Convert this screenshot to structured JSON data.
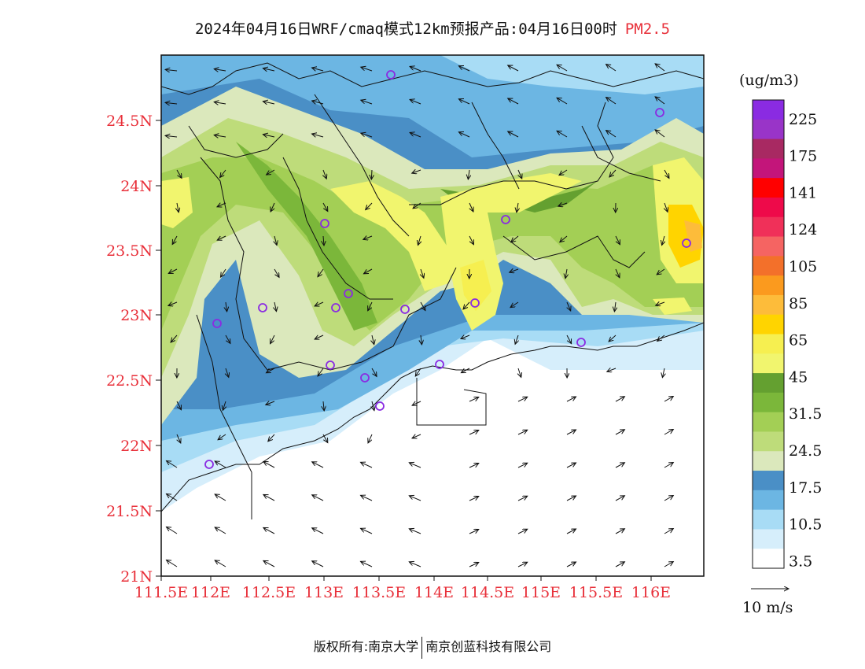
{
  "title": "2024年04月16日WRF/cmaq模式12km预报产品:04月16日00时",
  "variable": "PM2.5",
  "units": "(ug/m3)",
  "wind_ref": "10 m/s",
  "footer": {
    "rights": "版权所有:南京大学",
    "company": "南京创蓝科技有限公司"
  },
  "map": {
    "lat_labels": [
      "24.5N",
      "24N",
      "23.5N",
      "23N",
      "22.5N",
      "22N",
      "21.5N",
      "21N"
    ],
    "lon_labels": [
      "111.5E",
      "112E",
      "112.5E",
      "113E",
      "113.5E",
      "114E",
      "114.5E",
      "115E",
      "115.5E",
      "116E"
    ]
  },
  "colorbar": {
    "colors": [
      "#ffffff",
      "#d6eefb",
      "#a8dcf5",
      "#6cb6e3",
      "#4a8fc6",
      "#dbe8bc",
      "#bedc7a",
      "#a3cf55",
      "#7bb73a",
      "#64a030",
      "#f1f56e",
      "#f6ef50",
      "#ffd400",
      "#fdbc3a",
      "#fb9a1e",
      "#f3702a",
      "#f56462",
      "#f03059",
      "#ee0a4a",
      "#ff0000",
      "#c3157a",
      "#a82962",
      "#9934c8",
      "#8a2be2"
    ],
    "labels": [
      "3.5",
      "10.5",
      "17.5",
      "24.5",
      "31.5",
      "45",
      "65",
      "85",
      "105",
      "124",
      "141",
      "175",
      "225"
    ]
  },
  "stations_icon": "circle-station-icon",
  "arrow_icon": "wind-arrow-icon"
}
